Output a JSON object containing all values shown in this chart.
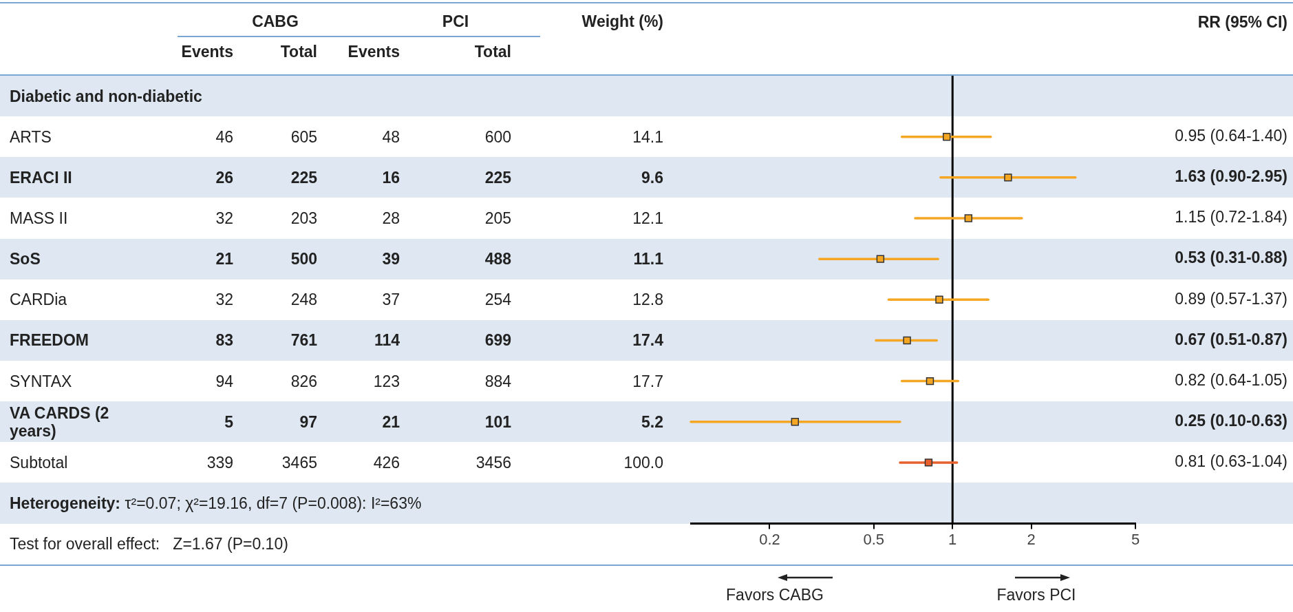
{
  "chart_data": [
    {
      "type": "other",
      "categories": [
        "ARTS",
        "ERACI II",
        "MASS II",
        "SoS",
        "CARDia",
        "FREEDOM",
        "SYNTAX",
        "VA CARDS (2 years)",
        "Subtotal"
      ],
      "series": [
        {
          "name": "Events",
          "values": [
            46,
            26,
            32,
            21,
            32,
            83,
            94,
            5,
            339
          ]
        },
        {
          "name": "Total",
          "values": [
            605,
            225,
            203,
            500,
            248,
            761,
            826,
            97,
            3465
          ]
        },
        {
          "name": "Events",
          "values": [
            48,
            16,
            28,
            39,
            37,
            114,
            123,
            21,
            426
          ]
        },
        {
          "name": "Total",
          "values": [
            600,
            225,
            205,
            488,
            254,
            699,
            884,
            101,
            3456
          ]
        },
        {
          "name": "Weight (%)",
          "values": [
            14.1,
            9.6,
            12.1,
            11.1,
            12.8,
            17.4,
            17.7,
            5.2,
            100.0
          ],
          "value_labels": [
            "14.1",
            "9.6",
            "12.1",
            "11.1",
            "12.8",
            "17.4",
            "17.7",
            "5.2",
            "100.0"
          ]
        }
      ],
      "data_labels": true,
      "annotations": [
        "CABG",
        "PCI",
        "Diabetic and non-diabetic",
        "Heterogeneity:",
        "τ²=0.07; χ²=19.16, df=7 (P=0.008): I²=63%",
        "Test for overall effect:   Z=1.67 (P=0.10)"
      ]
    },
    {
      "type": "scatter",
      "categories": [
        null,
        null,
        null,
        null,
        null,
        null,
        null,
        null,
        null,
        null,
        null
      ],
      "series": [
        {
          "colors": [
            null,
            "#f5a623",
            "#f5a623",
            "#f5a623",
            "#f5a623",
            "#f5a623",
            "#f5a623",
            "#f5a623",
            "#f5a623",
            "#e8602c",
            null
          ],
          "marker": "square",
          "values": [
            null,
            0.95,
            1.63,
            1.15,
            0.53,
            0.89,
            0.67,
            0.82,
            0.25,
            0.81,
            null
          ],
          "errors": [
            null,
            [
              0.64,
              1.4
            ],
            [
              0.9,
              2.95
            ],
            [
              0.72,
              1.84
            ],
            [
              0.31,
              0.88
            ],
            [
              0.57,
              1.37
            ],
            [
              0.51,
              0.87
            ],
            [
              0.64,
              1.05
            ],
            [
              0.1,
              0.63
            ],
            [
              0.63,
              1.04
            ],
            null
          ],
          "value_labels": [
            null,
            "0.95 (0.64-1.40)",
            "1.63 (0.90-2.95)",
            "1.15 (0.72-1.84)",
            "0.53 (0.31-0.88)",
            "0.89 (0.57-1.37)",
            "0.67 (0.51-0.87)",
            "0.82 (0.64-1.05)",
            "0.25 (0.10-0.63)",
            "0.81 (0.63-1.04)",
            null
          ]
        }
      ],
      "orientation": "horizontal",
      "tick_labels": "x",
      "log": "x",
      "xlim": [
        0.1,
        5
      ],
      "xticks": [
        0.2,
        0.5,
        1,
        2,
        5
      ],
      "ref_lines": [
        {
          "axis": "x",
          "value": 1,
          "color": "#000000"
        }
      ],
      "annotations": [
        "RR (95% CI)",
        "Favors CABG",
        "Favors PCI"
      ]
    }
  ]
}
